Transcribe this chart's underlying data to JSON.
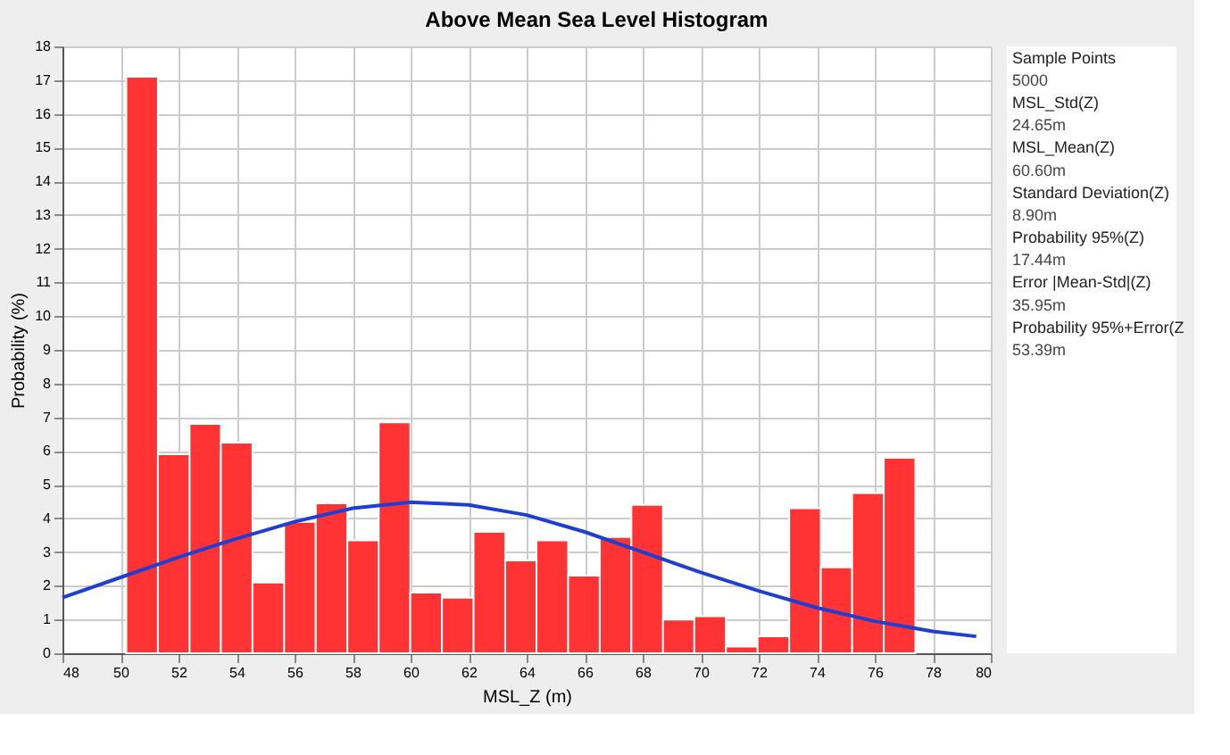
{
  "chart_data": {
    "type": "histogram",
    "title": "Above Mean Sea Level Histogram",
    "xlabel": "MSL_Z (m)",
    "ylabel": "Probability (%)",
    "bins": [
      50.2,
      51.29,
      52.38,
      53.46,
      54.55,
      55.64,
      56.73,
      57.82,
      58.9,
      59.99,
      61.08,
      62.17,
      63.26,
      64.34,
      65.43,
      66.52,
      67.61,
      68.7,
      69.78,
      70.87,
      71.96,
      73.05,
      74.14,
      75.22,
      76.31,
      77.4
    ],
    "values": [
      17.1,
      5.9,
      6.8,
      6.25,
      2.1,
      3.9,
      4.45,
      3.35,
      6.85,
      1.8,
      1.65,
      3.6,
      2.75,
      3.35,
      2.3,
      3.45,
      4.4,
      1.0,
      1.1,
      0.2,
      0.5,
      4.3,
      2.55,
      4.75,
      5.8
    ],
    "color": "#ff3333",
    "series": [
      {
        "type": "line",
        "color": "#1f3fd0",
        "x": [
          48,
          50,
          52,
          54,
          56,
          58,
          60,
          62,
          64,
          66,
          68,
          70,
          72,
          74,
          76,
          78,
          79.5
        ],
        "values": [
          1.65,
          2.25,
          2.85,
          3.4,
          3.9,
          4.3,
          4.48,
          4.4,
          4.1,
          3.6,
          3.0,
          2.4,
          1.85,
          1.35,
          0.95,
          0.65,
          0.5
        ]
      }
    ],
    "xlim": [
      48,
      80
    ],
    "xticks": [
      48,
      50,
      52,
      54,
      56,
      58,
      60,
      62,
      64,
      66,
      68,
      70,
      72,
      74,
      76,
      78,
      80
    ],
    "ylim": [
      0,
      18
    ],
    "yticks": [
      0,
      1,
      2,
      3,
      4,
      5,
      6,
      7,
      8,
      9,
      10,
      11,
      12,
      13,
      14,
      15,
      16,
      17,
      18
    ],
    "grid": true,
    "annotations": [
      "Sample Points",
      "5000",
      "MSL_Std(Z)",
      "24.65m",
      "MSL_Mean(Z)",
      "60.60m",
      "Standard Deviation(Z)",
      "8.90m",
      "Probability 95%(Z)",
      "17.44m",
      "Error |Mean-Std|(Z)",
      "35.95m",
      "Probability 95%+Error(Z",
      "53.39m"
    ]
  }
}
